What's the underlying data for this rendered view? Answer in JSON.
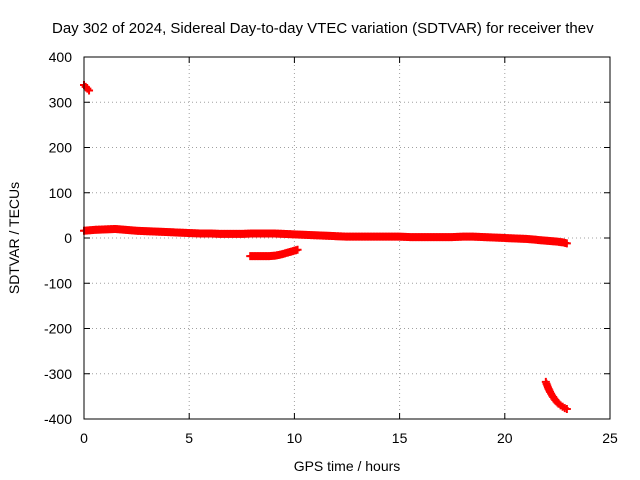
{
  "chart_data": {
    "type": "scatter",
    "title": "Day 302 of 2024, Sidereal Day-to-day VTEC variation (SDTVAR) for receiver thev",
    "xlabel": "GPS time / hours",
    "ylabel": "SDTVAR / TECUs",
    "xlim": [
      0,
      25
    ],
    "ylim": [
      -400,
      400
    ],
    "xticks": [
      0,
      5,
      10,
      15,
      20,
      25
    ],
    "yticks": [
      -400,
      -300,
      -200,
      -100,
      0,
      100,
      200,
      300,
      400
    ],
    "grid": true,
    "legend": "none",
    "marker": "plus",
    "color": "#ff0000",
    "segments": [
      {
        "x": [
          0.0,
          0.08,
          0.16,
          0.24
        ],
        "y": [
          338,
          334,
          330,
          326
        ]
      },
      {
        "x": [
          0.0,
          0.5,
          1.0,
          1.5,
          2.0,
          2.5,
          3.0,
          3.5,
          4.0,
          4.5,
          5.0,
          5.5,
          6.0,
          6.5,
          7.0,
          7.5,
          8.0,
          8.5,
          9.0,
          9.5,
          10.0,
          10.5,
          11.0,
          11.5,
          12.0,
          12.5,
          13.0,
          13.5,
          14.0,
          14.5,
          15.0,
          15.5,
          16.0,
          16.5,
          17.0,
          17.5,
          18.0,
          18.5,
          19.0,
          19.5,
          20.0,
          20.5,
          21.0,
          21.5,
          22.0,
          22.5,
          22.8,
          22.95
        ],
        "y": [
          16,
          18,
          19,
          20,
          18,
          16,
          15,
          14,
          13,
          12,
          11,
          10,
          10,
          9,
          9,
          9,
          10,
          10,
          10,
          9,
          8,
          7,
          6,
          5,
          4,
          3,
          3,
          3,
          3,
          3,
          3,
          2,
          2,
          2,
          2,
          2,
          3,
          3,
          2,
          1,
          0,
          -1,
          -2,
          -4,
          -6,
          -8,
          -10,
          -12
        ]
      },
      {
        "x": [
          7.9,
          8.2,
          8.5,
          8.8,
          9.1,
          9.4,
          9.7,
          10.0,
          10.15
        ],
        "y": [
          -40,
          -40,
          -40,
          -40,
          -39,
          -36,
          -32,
          -28,
          -26
        ]
      },
      {
        "x": [
          21.95,
          22.05,
          22.15,
          22.25,
          22.35,
          22.45,
          22.55,
          22.65,
          22.75,
          22.85,
          22.95
        ],
        "y": [
          -318,
          -330,
          -340,
          -348,
          -355,
          -361,
          -366,
          -370,
          -373,
          -376,
          -378
        ]
      }
    ]
  }
}
